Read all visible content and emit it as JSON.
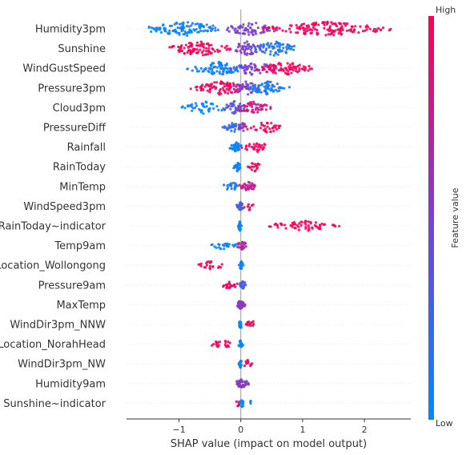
{
  "chart_data": {
    "type": "scatter",
    "subtype": "shap-beeswarm-summary",
    "title": "",
    "xlabel": "SHAP value (impact on model output)",
    "ylabel": "",
    "xlim": [
      -1.85,
      2.75
    ],
    "x_ticks": [
      -1,
      0,
      1,
      2
    ],
    "x_tick_labels": [
      "−1",
      "0",
      "1",
      "2"
    ],
    "zero_line": 0,
    "grid": false,
    "colors": {
      "low": "#008bfb",
      "mid": "#7b40d0",
      "high": "#ff0052",
      "zero_line": "#999999",
      "row_guide": "#e6e6e6"
    },
    "colorbar": {
      "label": "Feature value",
      "high_label": "High",
      "low_label": "Low",
      "placement": "right"
    },
    "features": [
      {
        "name": "Humidity3pm",
        "min": -1.65,
        "max": 2.5,
        "density": 1.0,
        "segments": [
          {
            "from": -1.65,
            "to": -0.2,
            "color": 0.05,
            "weight": 3
          },
          {
            "from": -0.3,
            "to": 0.6,
            "color": 0.5,
            "weight": 3
          },
          {
            "from": 0.3,
            "to": 2.5,
            "color": 0.97,
            "weight": 3
          }
        ]
      },
      {
        "name": "Sunshine",
        "min": -1.3,
        "max": 0.95,
        "density": 1.0,
        "segments": [
          {
            "from": -1.3,
            "to": -0.05,
            "color": 0.97,
            "weight": 3
          },
          {
            "from": -0.2,
            "to": 0.4,
            "color": 0.5,
            "weight": 3
          },
          {
            "from": 0.15,
            "to": 0.95,
            "color": 0.12,
            "weight": 3
          }
        ]
      },
      {
        "name": "WindGustSpeed",
        "min": -0.9,
        "max": 1.2,
        "density": 0.95,
        "segments": [
          {
            "from": -0.9,
            "to": 0.15,
            "color": 0.07,
            "weight": 3
          },
          {
            "from": -0.25,
            "to": 0.6,
            "color": 0.5,
            "weight": 2
          },
          {
            "from": 0.2,
            "to": 1.2,
            "color": 0.95,
            "weight": 3
          }
        ]
      },
      {
        "name": "Pressure3pm",
        "min": -0.85,
        "max": 0.82,
        "density": 0.95,
        "segments": [
          {
            "from": -0.85,
            "to": 0.2,
            "color": 0.95,
            "weight": 3
          },
          {
            "from": -0.2,
            "to": 0.4,
            "color": 0.5,
            "weight": 2
          },
          {
            "from": 0.05,
            "to": 0.82,
            "color": 0.1,
            "weight": 3
          }
        ]
      },
      {
        "name": "Cloud3pm",
        "min": -0.98,
        "max": 0.5,
        "density": 0.85,
        "segments": [
          {
            "from": -0.98,
            "to": -0.2,
            "color": 0.04,
            "weight": 2
          },
          {
            "from": -0.3,
            "to": 0.1,
            "color": 0.35,
            "weight": 3
          },
          {
            "from": -0.1,
            "to": 0.5,
            "color": 0.8,
            "weight": 3
          }
        ]
      },
      {
        "name": "PressureDiff",
        "min": -0.3,
        "max": 0.78,
        "density": 0.7,
        "segments": [
          {
            "from": -0.3,
            "to": 0.05,
            "color": 0.2,
            "weight": 3
          },
          {
            "from": -0.05,
            "to": 0.1,
            "color": 0.6,
            "weight": 3
          },
          {
            "from": 0.05,
            "to": 0.78,
            "color": 0.96,
            "weight": 2
          }
        ]
      },
      {
        "name": "Rainfall",
        "min": -0.18,
        "max": 0.5,
        "density": 0.65,
        "segments": [
          {
            "from": -0.18,
            "to": 0.02,
            "color": 0.05,
            "weight": 4
          },
          {
            "from": 0.0,
            "to": 0.5,
            "color": 0.96,
            "weight": 2
          }
        ]
      },
      {
        "name": "RainToday",
        "min": -0.12,
        "max": 0.35,
        "density": 0.6,
        "segments": [
          {
            "from": -0.12,
            "to": 0.0,
            "color": 0.05,
            "weight": 4
          },
          {
            "from": 0.08,
            "to": 0.35,
            "color": 0.96,
            "weight": 2
          }
        ]
      },
      {
        "name": "MinTemp",
        "min": -0.3,
        "max": 0.28,
        "density": 0.55,
        "segments": [
          {
            "from": -0.3,
            "to": 0.0,
            "color": 0.12,
            "weight": 2
          },
          {
            "from": -0.05,
            "to": 0.28,
            "color": 0.75,
            "weight": 3
          }
        ]
      },
      {
        "name": "WindSpeed3pm",
        "min": -0.07,
        "max": 0.22,
        "density": 0.5,
        "segments": [
          {
            "from": -0.07,
            "to": 0.05,
            "color": 0.3,
            "weight": 4
          },
          {
            "from": 0.05,
            "to": 0.22,
            "color": 0.96,
            "weight": 1
          }
        ]
      },
      {
        "name": "RainToday~indicator",
        "min": -0.05,
        "max": 1.65,
        "density": 0.65,
        "segments": [
          {
            "from": -0.05,
            "to": 0.02,
            "color": 0.05,
            "weight": 4
          },
          {
            "from": 0.38,
            "to": 1.65,
            "color": 0.97,
            "weight": 2
          }
        ]
      },
      {
        "name": "Temp9am",
        "min": -0.5,
        "max": 0.12,
        "density": 0.5,
        "segments": [
          {
            "from": -0.5,
            "to": -0.05,
            "color": 0.05,
            "weight": 2
          },
          {
            "from": -0.08,
            "to": 0.12,
            "color": 0.7,
            "weight": 3
          }
        ]
      },
      {
        "name": "Location_Wollongong",
        "min": -0.72,
        "max": 0.05,
        "density": 0.5,
        "segments": [
          {
            "from": -0.72,
            "to": -0.25,
            "color": 0.97,
            "weight": 2
          },
          {
            "from": -0.04,
            "to": 0.05,
            "color": 0.05,
            "weight": 4
          }
        ]
      },
      {
        "name": "Pressure9am",
        "min": -0.38,
        "max": 0.12,
        "density": 0.5,
        "segments": [
          {
            "from": -0.38,
            "to": -0.02,
            "color": 0.93,
            "weight": 2
          },
          {
            "from": -0.05,
            "to": 0.12,
            "color": 0.3,
            "weight": 3
          }
        ]
      },
      {
        "name": "MaxTemp",
        "min": -0.1,
        "max": 0.08,
        "density": 0.5,
        "segments": [
          {
            "from": -0.1,
            "to": 0.08,
            "color": 0.55,
            "weight": 4
          }
        ]
      },
      {
        "name": "WindDir3pm_NNW",
        "min": -0.04,
        "max": 0.3,
        "density": 0.5,
        "segments": [
          {
            "from": -0.04,
            "to": 0.03,
            "color": 0.05,
            "weight": 4
          },
          {
            "from": 0.05,
            "to": 0.3,
            "color": 0.95,
            "weight": 2
          }
        ]
      },
      {
        "name": "Location_NorahHead",
        "min": -0.5,
        "max": 0.04,
        "density": 0.5,
        "segments": [
          {
            "from": -0.5,
            "to": -0.1,
            "color": 0.97,
            "weight": 2
          },
          {
            "from": -0.04,
            "to": 0.04,
            "color": 0.05,
            "weight": 4
          }
        ]
      },
      {
        "name": "WindDir3pm_NW",
        "min": -0.04,
        "max": 0.2,
        "density": 0.5,
        "segments": [
          {
            "from": -0.04,
            "to": 0.03,
            "color": 0.05,
            "weight": 4
          },
          {
            "from": 0.04,
            "to": 0.2,
            "color": 0.95,
            "weight": 2
          }
        ]
      },
      {
        "name": "Humidity9am",
        "min": -0.12,
        "max": 0.15,
        "density": 0.5,
        "segments": [
          {
            "from": -0.12,
            "to": 0.15,
            "color": 0.55,
            "weight": 4
          }
        ]
      },
      {
        "name": "Sunshine~indicator",
        "min": -0.1,
        "max": 0.18,
        "density": 0.45,
        "segments": [
          {
            "from": -0.1,
            "to": 0.0,
            "color": 0.96,
            "weight": 2
          },
          {
            "from": -0.02,
            "to": 0.06,
            "color": 0.05,
            "weight": 4
          },
          {
            "from": 0.14,
            "to": 0.18,
            "color": 0.05,
            "weight": 1
          }
        ]
      }
    ]
  }
}
